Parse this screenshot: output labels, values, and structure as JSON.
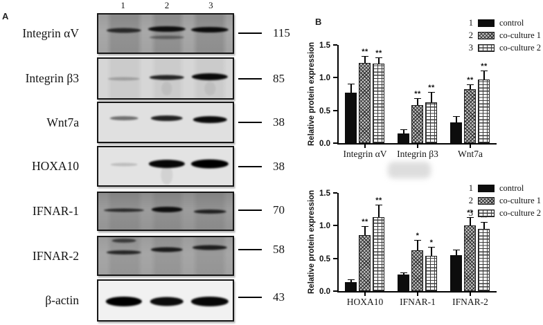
{
  "panelA": {
    "label": "A",
    "lane_numbers": [
      "1",
      "2",
      "3"
    ],
    "blots": [
      {
        "label": "Integrin αV",
        "mw": "115",
        "bg": "#a8a8a8",
        "colshade": 0.13,
        "topshade": 0.07,
        "bands": [
          [
            0,
            41,
            7,
            26,
            0.72
          ],
          [
            1,
            38,
            8,
            28,
            0.9
          ],
          [
            1,
            60,
            5,
            26,
            0.38
          ],
          [
            2,
            40,
            8,
            28,
            0.92
          ]
        ]
      },
      {
        "label": "Integrin β3",
        "mw": "85",
        "bg": "#d6d6d6",
        "colshade": 0.05,
        "topshade": 0,
        "bands": [
          [
            0,
            50,
            5,
            24,
            0.22
          ],
          [
            1,
            48,
            7,
            26,
            0.82
          ],
          [
            2,
            45,
            10,
            27,
            0.95
          ],
          [
            1,
            76,
            20,
            8,
            0.06
          ],
          [
            2,
            76,
            20,
            8,
            0.06
          ]
        ]
      },
      {
        "label": "Wnt7a",
        "mw": "38",
        "bg": "#e0e0e0",
        "colshade": 0,
        "topshade": 0,
        "bands": [
          [
            0,
            40,
            6,
            21,
            0.5
          ],
          [
            1,
            40,
            8,
            24,
            0.85
          ],
          [
            2,
            42,
            10,
            25,
            0.95
          ]
        ]
      },
      {
        "label": "HOXA10",
        "mw": "38",
        "bg": "#e3e3e3",
        "colshade": 0,
        "topshade": 0,
        "bands": [
          [
            0,
            45,
            5,
            20,
            0.16
          ],
          [
            1,
            44,
            12,
            27,
            0.97
          ],
          [
            2,
            43,
            13,
            28,
            1.0
          ],
          [
            1,
            72,
            28,
            9,
            0.07
          ]
        ]
      },
      {
        "label": "IFNAR-1",
        "mw": "70",
        "bg": "#9c9c9c",
        "colshade": 0.07,
        "topshade": 0.1,
        "bands": [
          [
            0,
            48,
            5,
            30,
            0.72
          ],
          [
            1,
            45,
            8,
            23,
            0.9
          ],
          [
            2,
            50,
            6,
            24,
            0.78
          ]
        ]
      },
      {
        "label": "IFNAR-2",
        "mw": "58",
        "bg": "#a6a6a6",
        "colshade": 0.08,
        "topshade": 0.06,
        "bands": [
          [
            0,
            10,
            6,
            18,
            0.6
          ],
          [
            0,
            40,
            6,
            26,
            0.75
          ],
          [
            1,
            33,
            7,
            24,
            0.82
          ],
          [
            2,
            28,
            7,
            26,
            0.8
          ]
        ]
      },
      {
        "label": "β-actin",
        "mw": "43",
        "bg": "#f1f1f1",
        "colshade": 0,
        "topshade": 0,
        "bands": [
          [
            0,
            52,
            14,
            27,
            1.0
          ],
          [
            1,
            52,
            13,
            25,
            0.95
          ],
          [
            2,
            52,
            14,
            28,
            0.97
          ]
        ]
      }
    ]
  },
  "panelB": {
    "label": "B",
    "legend_numbers": [
      "1",
      "2",
      "3"
    ]
  },
  "chart_data": [
    {
      "type": "bar",
      "title": "",
      "ylabel": "Relative protein expression",
      "xlabel": "",
      "ylim": [
        0,
        1.5
      ],
      "yticks": [
        0.0,
        0.5,
        1.0,
        1.5
      ],
      "grid": false,
      "legend_position": "top-right",
      "categories": [
        "Integrin αV",
        "Integrin β3",
        "Wnt7a"
      ],
      "series": [
        {
          "name": "control",
          "values": [
            0.77,
            0.15,
            0.32
          ],
          "errors": [
            0.13,
            0.05,
            0.08
          ],
          "sig": [
            "",
            "",
            ""
          ]
        },
        {
          "name": "co-culture 1",
          "values": [
            1.23,
            0.58,
            0.82
          ],
          "errors": [
            0.1,
            0.1,
            0.06
          ],
          "sig": [
            "**",
            "**",
            "**"
          ]
        },
        {
          "name": "co-culture 2",
          "values": [
            1.22,
            0.62,
            0.97
          ],
          "errors": [
            0.08,
            0.15,
            0.13
          ],
          "sig": [
            "**",
            "**",
            "**"
          ]
        }
      ]
    },
    {
      "type": "bar",
      "title": "",
      "ylabel": "Relative protein expression",
      "xlabel": "",
      "ylim": [
        0,
        1.5
      ],
      "yticks": [
        0.0,
        0.5,
        1.0,
        1.5
      ],
      "grid": false,
      "legend_position": "top-right",
      "categories": [
        "HOXA10",
        "IFNAR-1",
        "IFNAR-2"
      ],
      "series": [
        {
          "name": "control",
          "values": [
            0.14,
            0.25,
            0.55
          ],
          "errors": [
            0.03,
            0.02,
            0.07
          ],
          "sig": [
            "",
            "",
            ""
          ]
        },
        {
          "name": "co-culture 1",
          "values": [
            0.86,
            0.62,
            1.0
          ],
          "errors": [
            0.13,
            0.15,
            0.12
          ],
          "sig": [
            "**",
            "*",
            "**"
          ]
        },
        {
          "name": "co-culture 2",
          "values": [
            1.13,
            0.54,
            0.95
          ],
          "errors": [
            0.18,
            0.13,
            0.1
          ],
          "sig": [
            "**",
            "*",
            "**"
          ]
        }
      ]
    }
  ],
  "colors": {
    "bar_solid": "#0d0d0d",
    "axis": "#000000",
    "background": "#ffffff"
  }
}
